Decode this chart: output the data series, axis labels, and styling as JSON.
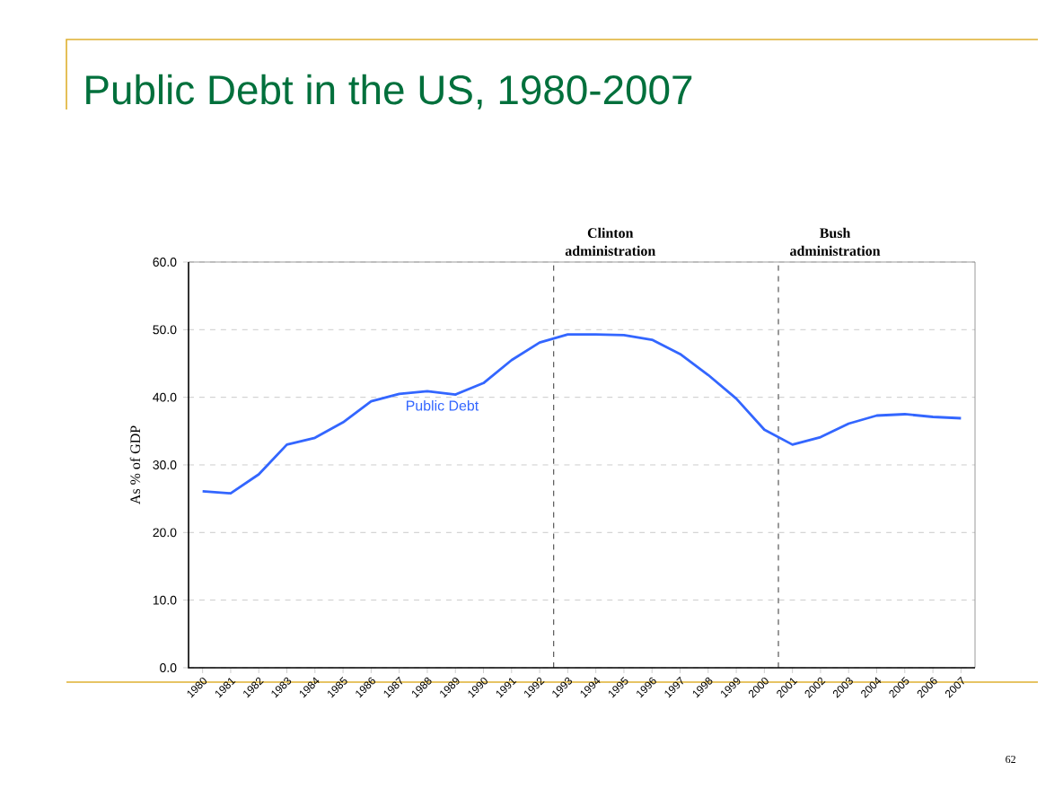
{
  "chart_data": {
    "type": "line",
    "title": "Public Debt in the US, 1980-2007",
    "ylabel": "As % of GDP",
    "x": [
      1980,
      1981,
      1982,
      1983,
      1984,
      1985,
      1986,
      1987,
      1988,
      1989,
      1990,
      1991,
      1992,
      1993,
      1994,
      1995,
      1996,
      1997,
      1998,
      1999,
      2000,
      2001,
      2002,
      2003,
      2004,
      2005,
      2006,
      2007
    ],
    "series": [
      {
        "name": "Public Debt",
        "color": "#3366ff",
        "values": [
          26.1,
          25.8,
          28.6,
          33.0,
          34.0,
          36.3,
          39.4,
          40.5,
          40.9,
          40.4,
          42.1,
          45.5,
          48.1,
          49.3,
          49.3,
          49.2,
          48.5,
          46.4,
          43.3,
          39.8,
          35.2,
          33.0,
          34.1,
          36.1,
          37.3,
          37.5,
          37.1,
          36.9
        ]
      }
    ],
    "xlim": [
      1979.5,
      2007.5
    ],
    "xticks": [
      1980,
      1981,
      1982,
      1983,
      1984,
      1985,
      1986,
      1987,
      1988,
      1989,
      1990,
      1991,
      1992,
      1993,
      1994,
      1995,
      1996,
      1997,
      1998,
      1999,
      2000,
      2001,
      2002,
      2003,
      2004,
      2005,
      2006,
      2007
    ],
    "ylim": [
      0,
      60
    ],
    "yticks": [
      {
        "value": 0,
        "label": "0.0"
      },
      {
        "value": 10,
        "label": "10.0"
      },
      {
        "value": 20,
        "label": "20.0"
      },
      {
        "value": 30,
        "label": "30.0"
      },
      {
        "value": 40,
        "label": "40.0"
      },
      {
        "value": 50,
        "label": "50.0"
      },
      {
        "value": 60,
        "label": "60.0"
      }
    ],
    "grid": "y",
    "marker": "none",
    "line_style": "solid",
    "ref_lines": [
      {
        "axis": "x",
        "value": 1992.5,
        "label": "Clinton administration",
        "color": "#000000",
        "line_style": "dashed"
      },
      {
        "axis": "x",
        "value": 2000.5,
        "label": "Bush administration",
        "color": "#000000",
        "line_style": "dashed"
      }
    ],
    "annotations": [
      "62"
    ]
  }
}
